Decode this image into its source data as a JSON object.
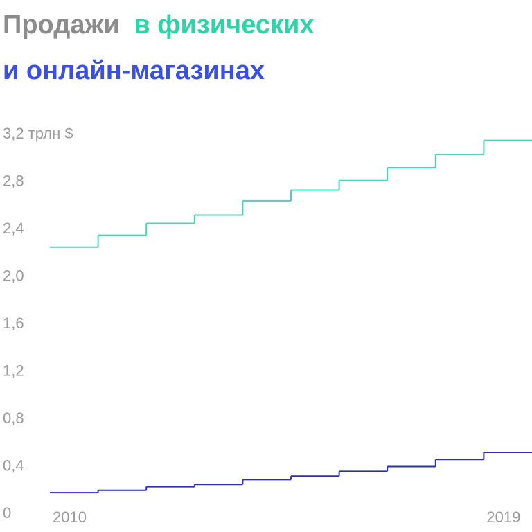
{
  "chart_data": {
    "type": "step",
    "title": "Продажи",
    "categories": [
      "2010",
      null,
      null,
      null,
      null,
      null,
      null,
      null,
      null,
      "2019"
    ],
    "series": [
      {
        "name": "в физических",
        "color": "#3fd8b8",
        "values": [
          2.25,
          2.35,
          2.45,
          2.52,
          2.64,
          2.73,
          2.81,
          2.92,
          3.03,
          3.15
        ]
      },
      {
        "name": "и онлайн-магазинах",
        "color": "#2b2fb8",
        "values": [
          0.18,
          0.2,
          0.23,
          0.25,
          0.29,
          0.32,
          0.36,
          0.4,
          0.46,
          0.52
        ]
      }
    ],
    "ylim": [
      0,
      3.2
    ],
    "yticks": [
      0,
      {
        "value": 0.4,
        "label": "0,4"
      },
      {
        "value": 0.8,
        "label": "0,8"
      },
      {
        "value": 1.2,
        "label": "1,2"
      },
      {
        "value": 1.6,
        "label": "1,6"
      },
      {
        "value": 2.0,
        "label": "2,0"
      },
      {
        "value": 2.4,
        "label": "2,4"
      },
      {
        "value": 2.8,
        "label": "2,8"
      },
      {
        "value": 3.2,
        "label": "3,2 трлн $"
      }
    ],
    "grid": false
  }
}
